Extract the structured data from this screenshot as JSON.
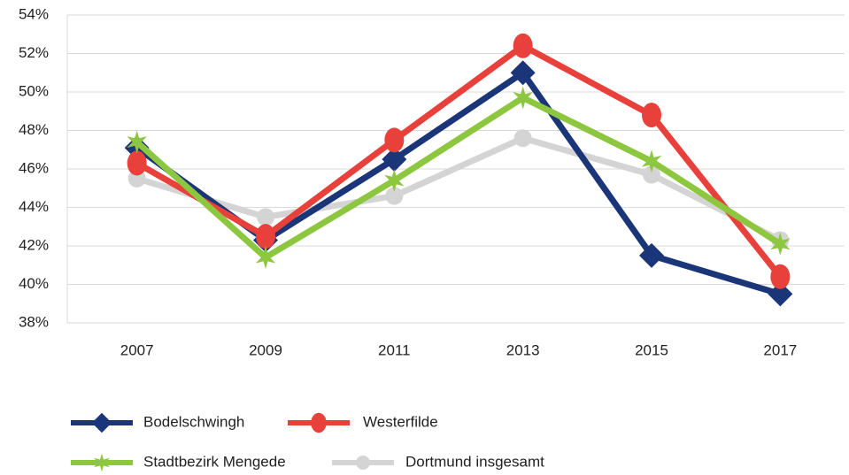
{
  "chart_data": {
    "type": "line",
    "categories": [
      "2007",
      "2009",
      "2011",
      "2013",
      "2015",
      "2017"
    ],
    "series": [
      {
        "name": "Dortmund insgesamt",
        "color": "#d4d4d4",
        "marker": "circle",
        "values": [
          45.5,
          43.5,
          44.6,
          47.6,
          45.7,
          42.3
        ]
      },
      {
        "name": "Bodelschwingh",
        "color": "#1b3678",
        "marker": "diamond",
        "values": [
          47.1,
          42.3,
          46.5,
          51.0,
          41.5,
          39.5
        ]
      },
      {
        "name": "Westerfilde",
        "color": "#e8413c",
        "marker": "ellipse",
        "values": [
          46.3,
          42.5,
          47.5,
          52.4,
          48.8,
          40.4
        ]
      },
      {
        "name": "Stadtbezirk Mengede",
        "color": "#8dc63f",
        "marker": "star",
        "values": [
          47.4,
          41.4,
          45.4,
          49.7,
          46.4,
          42.1
        ]
      }
    ],
    "ylim": [
      38,
      54
    ],
    "yticks": [
      {
        "value": 38,
        "label": "38%"
      },
      {
        "value": 40,
        "label": "40%"
      },
      {
        "value": 42,
        "label": "42%"
      },
      {
        "value": 44,
        "label": "44%"
      },
      {
        "value": 46,
        "label": "46%"
      },
      {
        "value": 48,
        "label": "48%"
      },
      {
        "value": 50,
        "label": "50%"
      },
      {
        "value": 52,
        "label": "52%"
      },
      {
        "value": 54,
        "label": "54%"
      }
    ],
    "grid": true
  }
}
